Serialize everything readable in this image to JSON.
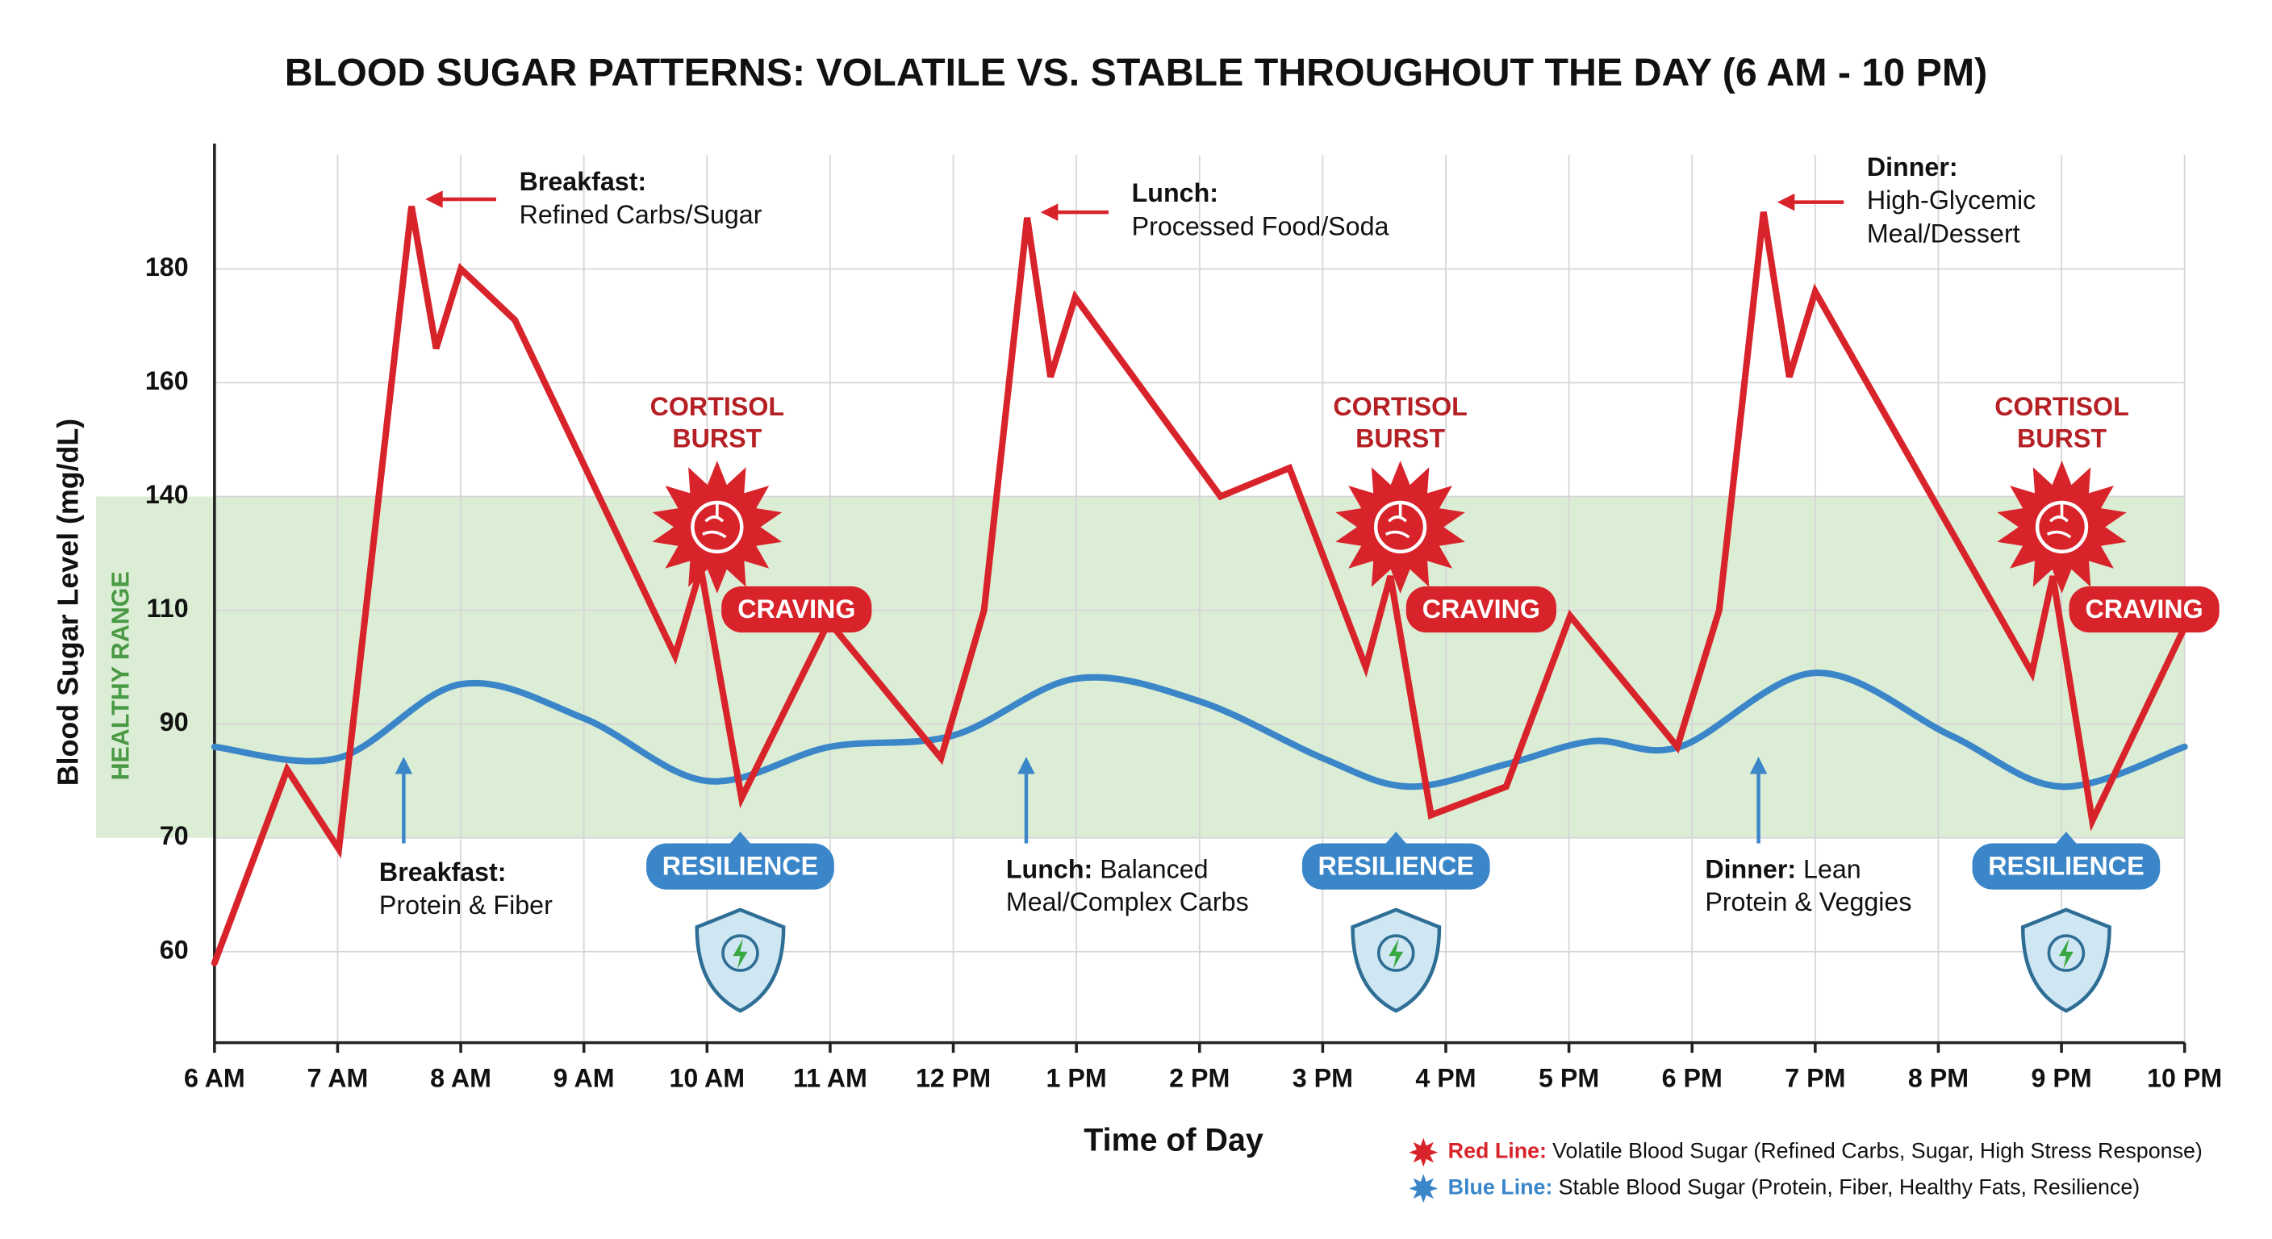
{
  "chart_data": {
    "type": "line",
    "title": "BLOOD SUGAR PATTERNS: VOLATILE VS. STABLE THROUGHOUT THE DAY (6 AM - 10 PM)",
    "x_label": "Time of Day",
    "y_label": "Blood Sugar Level (mg/dL)",
    "xlim": [
      6,
      22
    ],
    "xticks": [
      {
        "value": 6,
        "label": "6 AM"
      },
      {
        "value": 7,
        "label": "7 AM"
      },
      {
        "value": 8,
        "label": "8 AM"
      },
      {
        "value": 9,
        "label": "9 AM"
      },
      {
        "value": 10,
        "label": "10 AM"
      },
      {
        "value": 11,
        "label": "11 AM"
      },
      {
        "value": 12,
        "label": "12 PM"
      },
      {
        "value": 13,
        "label": "1 PM"
      },
      {
        "value": 14,
        "label": "2 PM"
      },
      {
        "value": 15,
        "label": "3 PM"
      },
      {
        "value": 16,
        "label": "4 PM"
      },
      {
        "value": 17,
        "label": "5 PM"
      },
      {
        "value": 18,
        "label": "6 PM"
      },
      {
        "value": 19,
        "label": "7 PM"
      },
      {
        "value": 20,
        "label": "8 PM"
      },
      {
        "value": 21,
        "label": "9 PM"
      },
      {
        "value": 22,
        "label": "10 PM"
      }
    ],
    "ylim": [
      52,
      200
    ],
    "yticks": [
      60,
      70,
      90,
      110,
      140,
      160,
      180
    ],
    "grid": true,
    "healthy_range": {
      "label": "HEALTHY RANGE",
      "range": [
        70,
        140
      ],
      "color": "#dcedd5"
    },
    "series": [
      {
        "name": "Volatile Blood Sugar (Refined Carbs, Sugar, High Stress Response)",
        "legend_label": "Red Line:",
        "color": "#d8232a",
        "x": [
          6,
          6.59,
          7.01,
          7.6,
          7.8,
          8,
          8.44,
          9.74,
          9.95,
          10.28,
          10.99,
          11.9,
          12.25,
          12.6,
          12.79,
          12.99,
          14.17,
          14.73,
          15.35,
          15.55,
          15.88,
          16.49,
          17.01,
          17.88,
          18.22,
          18.58,
          18.79,
          19,
          20.76,
          20.93,
          21.25,
          22
        ],
        "values": [
          59,
          82,
          69,
          191,
          166,
          180,
          171,
          102,
          121,
          77,
          108,
          84,
          110,
          189,
          161,
          175,
          140,
          145,
          100,
          119,
          74,
          79,
          109,
          86,
          110,
          190,
          161,
          176,
          99,
          119,
          73,
          107
        ]
      },
      {
        "name": "Stable Blood Sugar (Protein, Fiber, Healthy Fats, Resilience)",
        "legend_label": "Blue Line:",
        "color": "#3a86c8",
        "smooth": true,
        "x": [
          6,
          7,
          8,
          9,
          10,
          11,
          12,
          13,
          14,
          15,
          15.7,
          16.5,
          17.2,
          17.9,
          19,
          20.1,
          21,
          22
        ],
        "values": [
          86,
          84,
          97,
          91,
          80,
          86,
          88,
          98,
          94,
          84,
          79,
          83,
          87,
          86,
          99,
          88,
          79,
          86
        ]
      }
    ],
    "annotations": {
      "meals_volatile": [
        {
          "label": "Breakfast:",
          "lines": [
            "Refined Carbs/Sugar"
          ]
        },
        {
          "label": "Lunch:",
          "lines": [
            "Processed Food/Soda"
          ]
        },
        {
          "label": "Dinner:",
          "lines": [
            "High-Glycemic",
            "Meal/Dessert"
          ]
        }
      ],
      "meals_stable": [
        {
          "label": "Breakfast:",
          "lines": [
            "",
            "Protein & Fiber"
          ]
        },
        {
          "label": "Lunch:",
          "lines": [
            "Balanced",
            "Meal/Complex Carbs"
          ]
        },
        {
          "label": "Dinner:",
          "lines": [
            "Lean",
            "Protein & Veggies"
          ]
        }
      ],
      "cortisol": [
        [
          "CORTISOL",
          "BURST"
        ],
        [
          "CORTISOL",
          "BURST"
        ],
        [
          "CORTISOL",
          "BURST"
        ]
      ],
      "craving": [
        "CRAVING",
        "CRAVING",
        "CRAVING"
      ],
      "resilience": [
        "RESILIENCE",
        "RESILIENCE",
        "RESILIENCE"
      ]
    }
  }
}
